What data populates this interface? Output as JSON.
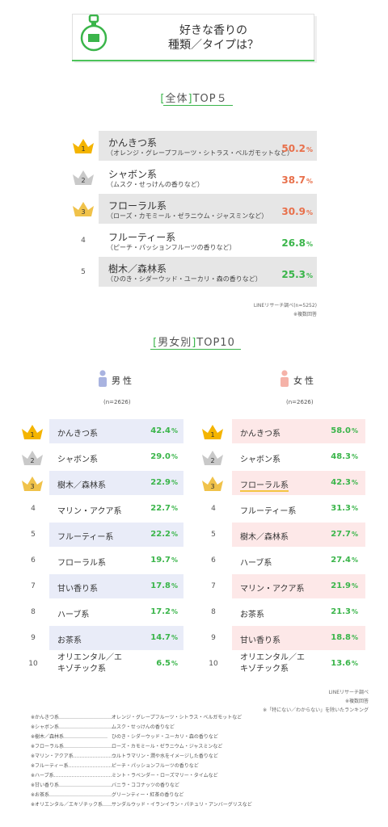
{
  "header": {
    "title_line1": "好きな香りの",
    "title_line2": "種類／タイプは？"
  },
  "colors": {
    "accent_green": "#3ab54a",
    "value_orange": "#e8704b",
    "value_green": "#3ab54a",
    "male_bg": "#e9ecf8",
    "female_bg": "#fde8e8",
    "overall_bg": "#e6e6e6"
  },
  "overall": {
    "title_bracket_open": "[",
    "title_inner": "全体",
    "title_bracket_close": "]",
    "title_rest": "TOP５",
    "source": "LINEリサーチ調べ(n=5252)",
    "note": "※複数回答"
  },
  "gender": {
    "title_bracket_open": "[",
    "title_inner": "男女別",
    "title_bracket_close": "]",
    "title_rest": "TOP10",
    "male_label": "男性",
    "female_label": "女性",
    "male_n": "(n=2626)",
    "female_n": "(n=2626)",
    "source": "LINEリサーチ調べ",
    "note1": "※複数回答",
    "note2": "※「特にない／わからない」を除いたランキング"
  },
  "footnotes": [
    {
      "key": "※かんきつ系……………………………",
      "value": "オレンジ・グレープフルーツ・シトラス・ベルガモットなど"
    },
    {
      "key": "※シャボン系……………………………",
      "value": "ムスク・せっけんの香りなど"
    },
    {
      "key": "※樹木／森林系………………………",
      "value": "ひのき・シダーウッド・ユーカリ・森の香りなど"
    },
    {
      "key": "※フローラル系…………………………",
      "value": "ローズ・カモミール・ゼラニウム・ジャスミンなど"
    },
    {
      "key": "※マリン・アクア系………………………",
      "value": "ウルトラマリン・潤や水をイメージした香りなど"
    },
    {
      "key": "※フルーティー系………………………",
      "value": "ピーチ・パッションフルーツの香りなど"
    },
    {
      "key": "※ハーブ系………………………………",
      "value": "ミント・ラベンダー・ローズマリー・タイムなど"
    },
    {
      "key": "※甘い香り系……………………………",
      "value": "バニラ・ココナッツの香りなど"
    },
    {
      "key": "※お茶系…………………………………",
      "value": "グリーンティー・紅茶の香りなど"
    },
    {
      "key": "※オリエンタル／エキゾチック系……",
      "value": "サンダルウッド・イランイラン・パチュリ・アンバーグリスなど"
    }
  ],
  "chart_data": [
    {
      "type": "table",
      "title": "[全体]TOP５",
      "unit": "%",
      "rows": [
        {
          "rank": 1,
          "name": "かんきつ系",
          "sub": "（オレンジ・グレープフルーツ・シトラス・ベルガモットなど）",
          "value": 50.2
        },
        {
          "rank": 2,
          "name": "シャボン系",
          "sub": "（ムスク・せっけんの香りなど）",
          "value": 38.7
        },
        {
          "rank": 3,
          "name": "フローラル系",
          "sub": "（ローズ・カモミール・ゼラニウム・ジャスミンなど）",
          "value": 30.9
        },
        {
          "rank": 4,
          "name": "フルーティー系",
          "sub": "（ピーチ・パッションフルーツの香りなど）",
          "value": 26.8
        },
        {
          "rank": 5,
          "name": "樹木／森林系",
          "sub": "（ひのき・シダーウッド・ユーカリ・森の香りなど）",
          "value": 25.3
        }
      ]
    },
    {
      "type": "table",
      "title": "男性",
      "unit": "%",
      "rows": [
        {
          "rank": 1,
          "name": "かんきつ系",
          "value": 42.4
        },
        {
          "rank": 2,
          "name": "シャボン系",
          "value": 29.0
        },
        {
          "rank": 3,
          "name": "樹木／森林系",
          "value": 22.9
        },
        {
          "rank": 4,
          "name": "マリン・アクア系",
          "value": 22.7
        },
        {
          "rank": 5,
          "name": "フルーティー系",
          "value": 22.2
        },
        {
          "rank": 6,
          "name": "フローラル系",
          "value": 19.7
        },
        {
          "rank": 7,
          "name": "甘い香り系",
          "value": 17.8
        },
        {
          "rank": 8,
          "name": "ハーブ系",
          "value": 17.2
        },
        {
          "rank": 9,
          "name": "お茶系",
          "value": 14.7
        },
        {
          "rank": 10,
          "name": "オリエンタル／エキゾチック系",
          "value": 6.5
        }
      ]
    },
    {
      "type": "table",
      "title": "女性",
      "unit": "%",
      "rows": [
        {
          "rank": 1,
          "name": "かんきつ系",
          "value": 58.0
        },
        {
          "rank": 2,
          "name": "シャボン系",
          "value": 48.3
        },
        {
          "rank": 3,
          "name": "フローラル系",
          "value": 42.3
        },
        {
          "rank": 4,
          "name": "フルーティー系",
          "value": 31.3
        },
        {
          "rank": 5,
          "name": "樹木／森林系",
          "value": 27.7
        },
        {
          "rank": 6,
          "name": "ハーブ系",
          "value": 27.4
        },
        {
          "rank": 7,
          "name": "マリン・アクア系",
          "value": 21.9
        },
        {
          "rank": 8,
          "name": "お茶系",
          "value": 21.3
        },
        {
          "rank": 9,
          "name": "甘い香り系",
          "value": 18.8
        },
        {
          "rank": 10,
          "name": "オリエンタル／エキゾチック系",
          "value": 13.6
        }
      ]
    }
  ]
}
